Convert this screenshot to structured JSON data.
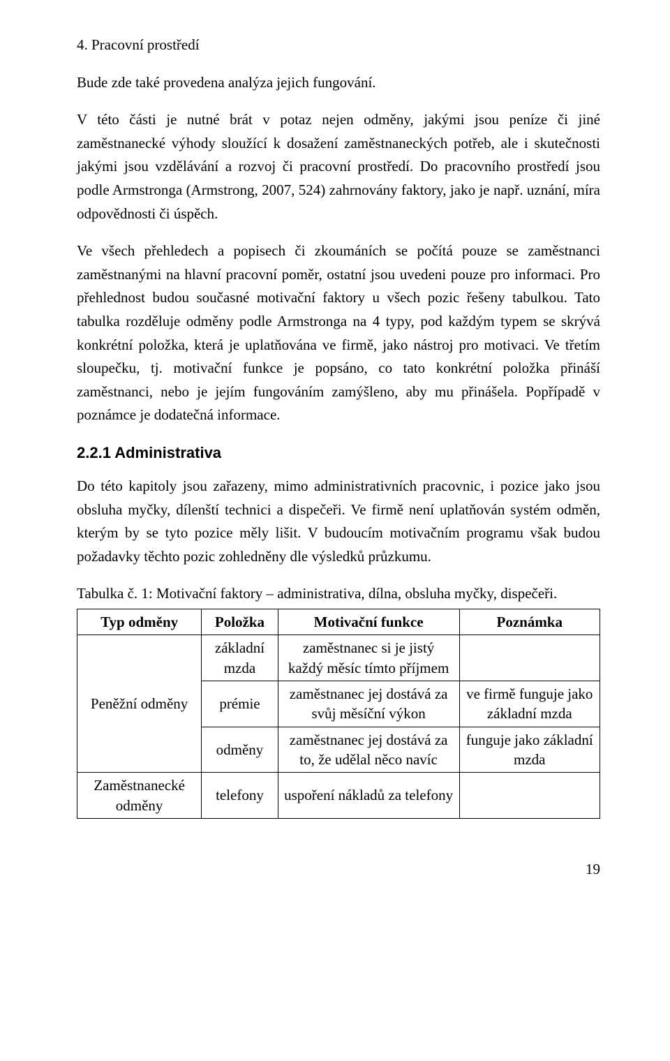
{
  "section_heading": "4. Pracovní prostředí",
  "para1": "Bude zde také provedena analýza jejich fungování.",
  "para2": "V této části je nutné brát v potaz nejen odměny, jakými jsou peníze či jiné zaměstnanecké výhody sloužící k dosažení zaměstnaneckých potřeb, ale i skutečnosti jakými jsou vzdělávání a rozvoj či pracovní prostředí. Do pracovního prostředí jsou podle Armstronga (Armstrong, 2007, 524) zahrnovány faktory, jako je např. uznání, míra odpovědnosti či úspěch.",
  "para3": "Ve všech přehledech a popisech či zkoumáních se počítá pouze se zaměstnanci zaměstnanými na hlavní pracovní poměr, ostatní jsou uvedeni pouze pro informaci. Pro přehlednost budou současné motivační faktory u všech pozic řešeny tabulkou. Tato tabulka rozděluje odměny podle Armstronga na 4 typy, pod každým typem se skrývá konkrétní položka, která je uplatňována ve firmě, jako nástroj pro motivaci. Ve třetím sloupečku, tj. motivační funkce je popsáno, co tato konkrétní položka přináší zaměstnanci, nebo je jejím fungováním zamýšleno, aby mu přinášela. Popřípadě v poznámce je dodatečná informace.",
  "subheading": "2.2.1 Administrativa",
  "para4": "Do této kapitoly jsou zařazeny, mimo administrativních pracovnic, i pozice jako jsou obsluha myčky, dílenští technici a dispečeři. Ve firmě není uplatňován systém odměn, kterým by se tyto pozice měly lišit. V budoucím motivačním programu však budou požadavky těchto pozic zohledněny dle výsledků průzkumu.",
  "table_caption": "Tabulka č. 1: Motivační faktory – administrativa, dílna, obsluha myčky, dispečeři.",
  "table": {
    "headers": [
      "Typ odměny",
      "Položka",
      "Motivační funkce",
      "Poznámka"
    ],
    "col1_group1": "Peněžní odměny",
    "col1_group2": "Zaměstnanecké odměny",
    "rows": [
      {
        "polozka": "základní mzda",
        "funkce": "zaměstnanec si je jistý každý měsíc tímto příjmem",
        "poznamka": ""
      },
      {
        "polozka": "prémie",
        "funkce": "zaměstnanec jej dostává za svůj měsíční výkon",
        "poznamka": "ve firmě funguje jako základní mzda"
      },
      {
        "polozka": "odměny",
        "funkce": "zaměstnanec jej dostává za to, že udělal něco navíc",
        "poznamka": "funguje jako základní mzda"
      },
      {
        "polozka": "telefony",
        "funkce": "uspoření nákladů za telefony",
        "poznamka": ""
      }
    ]
  },
  "page_number": "19"
}
